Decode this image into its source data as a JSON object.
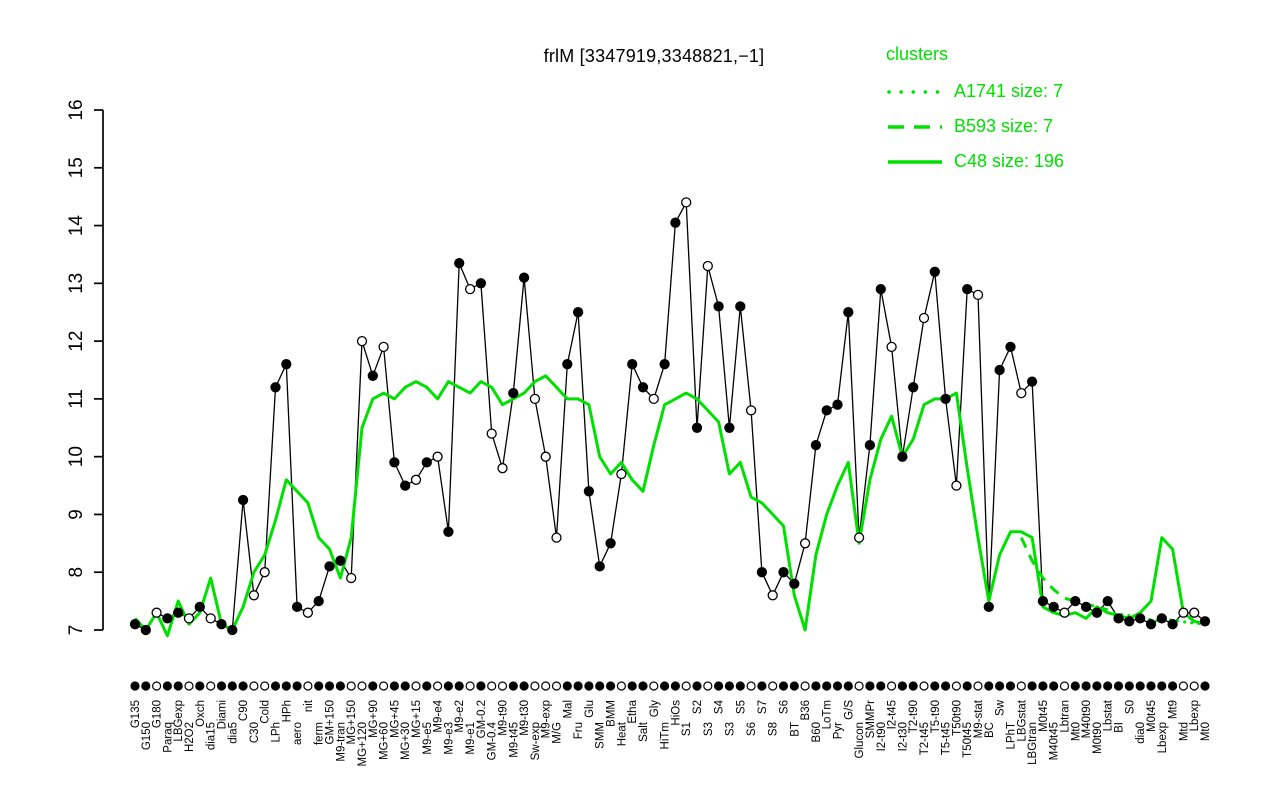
{
  "title": "frlM [3347919,3348821,−1]",
  "legend": {
    "heading": "clusters",
    "color": "#00e000",
    "items": [
      {
        "label": "A1741 size: 7",
        "style": "dotted"
      },
      {
        "label": "B593 size: 7",
        "style": "dashed"
      },
      {
        "label": "C48 size: 196",
        "style": "solid"
      }
    ]
  },
  "chart_data": {
    "type": "line",
    "title": "frlM [3347919,3348821,−1]",
    "ylim": [
      7,
      16
    ],
    "yticks": [
      7,
      8,
      9,
      10,
      11,
      12,
      13,
      14,
      15,
      16
    ],
    "grid": false,
    "legend_position": "top-right",
    "categories": [
      "G135",
      "G150",
      "G180",
      "Paraq",
      "LBGexp",
      "H2O2",
      "Oxch",
      "dia15",
      "Diami",
      "dia5",
      "C90",
      "C30",
      "Cold",
      "LPh",
      "HPh",
      "aero",
      "nit",
      "ferm",
      "GM+150",
      "M9-tran",
      "MG+150",
      "MG+120",
      "MG+90",
      "MG+60",
      "MG+45",
      "MG+30",
      "MG+15",
      "M9-e5",
      "M9-e4",
      "M9-e3",
      "M9-e2",
      "M9-e1",
      "GM-0.2",
      "GM-0.4",
      "M9-t90",
      "M9-t45",
      "M9-t30",
      "Sw-exp",
      "M9-exp",
      "M/G",
      "Mal",
      "Fru",
      "Glu",
      "SMM",
      "BMM",
      "Heat",
      "Etha",
      "Salt",
      "Gly",
      "HiTm",
      "HiOs",
      "S1",
      "S2",
      "S3",
      "S4",
      "S3",
      "S5",
      "S6",
      "S7",
      "S8",
      "S6",
      "BT",
      "B36",
      "B60",
      "LoTm",
      "Pyr",
      "G/S",
      "Glucon",
      "SMMPr",
      "I2-t90",
      "I2-t45",
      "I2-t30",
      "T2-t90",
      "T2-t45",
      "T5-t90",
      "T5-t45",
      "T50t90",
      "T50t45",
      "M9-stat",
      "BC",
      "Sw",
      "LPhT",
      "LBGstat",
      "LBGtran",
      "M0t45",
      "M40t45",
      "Lbtran",
      "Mt0",
      "M40t90",
      "M0t90",
      "Lbstat",
      "BI",
      "S0",
      "dia0",
      "M0t45",
      "Lbexp",
      "Mt9",
      "Mtd",
      "Lbexp",
      "Mt0"
    ],
    "series": [
      {
        "name": "frlM-profile",
        "color": "#000000",
        "style": "solid",
        "width": 1.3,
        "markers": [
          "f",
          "f",
          "o",
          "f",
          "f",
          "o",
          "f",
          "o",
          "f",
          "f",
          "f",
          "o",
          "o",
          "f",
          "f",
          "f",
          "o",
          "f",
          "f",
          "f",
          "o",
          "o",
          "f",
          "o",
          "f",
          "f",
          "o",
          "f",
          "o",
          "f",
          "f",
          "o",
          "f",
          "o",
          "o",
          "f",
          "f",
          "o",
          "o",
          "o",
          "f",
          "f",
          "f",
          "f",
          "f",
          "o",
          "f",
          "f",
          "o",
          "f",
          "f",
          "o",
          "f",
          "o",
          "f",
          "f",
          "f",
          "o",
          "f",
          "o",
          "f",
          "f",
          "o",
          "f",
          "f",
          "f",
          "f",
          "o",
          "f",
          "f",
          "o",
          "f",
          "f",
          "o",
          "f",
          "f",
          "o",
          "f",
          "o",
          "f",
          "f",
          "f",
          "o",
          "f",
          "f",
          "f",
          "o",
          "f",
          "f",
          "f",
          "f",
          "f",
          "f",
          "f",
          "f",
          "f",
          "f",
          "o",
          "o",
          "f"
        ],
        "values": [
          7.1,
          7.0,
          7.3,
          7.2,
          7.3,
          7.2,
          7.4,
          7.2,
          7.1,
          7.0,
          9.25,
          7.6,
          8.0,
          11.2,
          11.6,
          7.4,
          7.3,
          7.5,
          8.1,
          8.2,
          7.9,
          12.0,
          11.4,
          11.9,
          9.9,
          9.5,
          9.6,
          9.9,
          10.0,
          8.7,
          13.35,
          12.9,
          13.0,
          10.4,
          9.8,
          11.1,
          13.1,
          11.0,
          10.0,
          8.6,
          11.6,
          12.5,
          9.4,
          8.1,
          8.5,
          9.7,
          11.6,
          11.2,
          11.0,
          11.6,
          14.05,
          14.4,
          10.5,
          13.3,
          12.6,
          10.5,
          12.6,
          10.8,
          8.0,
          7.6,
          8.0,
          7.8,
          8.5,
          10.2,
          10.8,
          10.9,
          12.5,
          8.6,
          10.2,
          12.9,
          11.9,
          10.0,
          11.2,
          12.4,
          13.2,
          11.0,
          9.5,
          12.9,
          12.8,
          7.4,
          11.5,
          11.9,
          11.1,
          11.3,
          7.5,
          7.4,
          7.3,
          7.5,
          7.4,
          7.3,
          7.5,
          7.2,
          7.15,
          7.2,
          7.1,
          7.2,
          7.1,
          7.3,
          7.3,
          7.15
        ]
      },
      {
        "name": "C48",
        "color": "#00e000",
        "style": "solid",
        "width": 3,
        "values": [
          7.2,
          7.0,
          7.3,
          6.9,
          7.5,
          7.1,
          7.3,
          7.9,
          7.1,
          7.0,
          7.4,
          8.0,
          8.3,
          8.9,
          9.6,
          9.4,
          9.2,
          8.6,
          8.4,
          7.9,
          8.6,
          10.5,
          11.0,
          11.1,
          11.0,
          11.2,
          11.3,
          11.2,
          11.0,
          11.3,
          11.2,
          11.1,
          11.3,
          11.2,
          10.9,
          11.0,
          11.1,
          11.3,
          11.4,
          11.2,
          11.0,
          11.0,
          10.9,
          10.0,
          9.7,
          9.9,
          9.6,
          9.4,
          10.2,
          10.9,
          11.0,
          11.1,
          11.0,
          10.8,
          10.6,
          9.7,
          9.9,
          9.3,
          9.2,
          9.0,
          8.8,
          7.6,
          7.0,
          8.3,
          9.0,
          9.5,
          9.9,
          8.5,
          9.6,
          10.3,
          10.7,
          10.0,
          10.3,
          10.9,
          11.0,
          11.0,
          11.1,
          9.8,
          8.6,
          7.5,
          8.3,
          8.7,
          8.7,
          8.6,
          7.4,
          7.3,
          7.25,
          7.3,
          7.2,
          7.4,
          7.3,
          7.25,
          7.2,
          7.3,
          7.5,
          8.6,
          8.4,
          7.3,
          7.15,
          7.1
        ]
      },
      {
        "name": "B593",
        "color": "#00e000",
        "style": "dashed",
        "width": 3,
        "segment_start": 82,
        "segment_values": [
          8.6,
          8.2,
          7.9,
          7.7,
          7.55,
          7.5,
          7.45,
          7.4,
          7.35
        ]
      },
      {
        "name": "A1741",
        "color": "#00e000",
        "style": "dotted",
        "width": 3,
        "segment_start": 90,
        "segment_values": [
          7.3,
          7.28,
          7.25,
          7.2,
          7.18,
          7.15,
          7.18,
          7.14,
          7.12,
          7.1
        ]
      }
    ]
  }
}
